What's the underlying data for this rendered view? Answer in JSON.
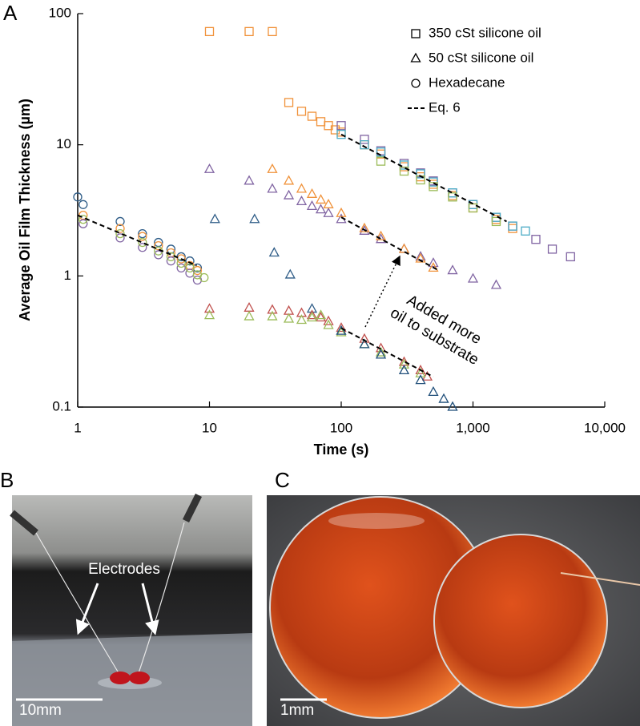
{
  "chart_data": {
    "type": "scatter",
    "panel_label": "A",
    "xlabel": "Time (s)",
    "ylabel": "Average Oil Film Thickness (µm)",
    "log_x": true,
    "log_y": true,
    "xlim": [
      1,
      10000
    ],
    "ylim": [
      0.1,
      100
    ],
    "xticks": [
      1,
      10,
      100,
      {
        "value": 1000,
        "label": "1,000"
      },
      {
        "value": 10000,
        "label": "10,000"
      }
    ],
    "yticks": [
      0.1,
      1,
      10,
      100
    ],
    "legend_position": "upper right",
    "legend": [
      {
        "name": "350 cSt silicone oil",
        "marker": "square"
      },
      {
        "name": "50 cSt silicone oil",
        "marker": "triangle"
      },
      {
        "name": "Hexadecane",
        "marker": "circle"
      },
      {
        "name": "Eq. 6",
        "marker": "dashed"
      }
    ],
    "series": [
      {
        "marker": "circle",
        "color": "#2e5c87",
        "x": [
          1,
          1.1,
          2.1,
          3.1,
          4.1,
          5.1,
          6.1,
          7.1,
          8.1
        ],
        "y": [
          4,
          3.5,
          2.6,
          2.1,
          1.8,
          1.6,
          1.4,
          1.3,
          1.15
        ]
      },
      {
        "marker": "circle",
        "color": "#f0923a",
        "x": [
          1.1,
          2.1,
          3.1,
          4.1,
          5.1,
          6.1,
          7.1,
          8.1
        ],
        "y": [
          2.9,
          2.3,
          2.0,
          1.7,
          1.5,
          1.35,
          1.2,
          1.1
        ]
      },
      {
        "marker": "circle",
        "color": "#8064a2",
        "x": [
          1.1,
          2.1,
          3.1,
          4.1,
          5.1,
          6.1,
          7.1,
          8.1
        ],
        "y": [
          2.5,
          1.95,
          1.65,
          1.45,
          1.3,
          1.15,
          1.05,
          0.93
        ]
      },
      {
        "marker": "circle",
        "color": "#9bbb59",
        "x": [
          1.1,
          2.1,
          3.1,
          4.1,
          5.1,
          6.1,
          7.1,
          8.1,
          9.1
        ],
        "y": [
          2.7,
          2.1,
          1.8,
          1.55,
          1.4,
          1.25,
          1.15,
          1.02,
          0.97
        ]
      },
      {
        "marker": "square",
        "color": "#f0923a",
        "x": [
          10,
          20,
          30,
          40,
          50,
          60,
          70,
          80,
          90,
          100,
          150,
          200,
          300,
          400,
          500,
          700,
          1000,
          1500,
          2000
        ],
        "y": [
          73,
          73,
          73,
          21,
          18,
          16.5,
          15,
          14,
          13,
          12.5,
          10,
          8.5,
          6.8,
          5.7,
          5,
          4.1,
          3.3,
          2.7,
          2.3
        ]
      },
      {
        "marker": "square",
        "color": "#8064a2",
        "x": [
          100,
          150,
          200,
          300,
          400,
          500,
          700,
          1000,
          1500,
          2000,
          3000,
          4000,
          5500
        ],
        "y": [
          14,
          11,
          9,
          7.2,
          6.1,
          5.3,
          4.3,
          3.5,
          2.8,
          2.4,
          1.9,
          1.6,
          1.4
        ]
      },
      {
        "marker": "square",
        "color": "#4bacc6",
        "x": [
          100,
          150,
          200,
          300,
          400,
          500,
          700,
          1000,
          1500,
          2000,
          2500
        ],
        "y": [
          12,
          10,
          8.8,
          7,
          6,
          5.2,
          4.3,
          3.5,
          2.8,
          2.4,
          2.2
        ]
      },
      {
        "marker": "square",
        "color": "#9bbb59",
        "x": [
          200,
          300,
          400,
          500,
          700,
          1000,
          1500
        ],
        "y": [
          7.5,
          6.3,
          5.4,
          4.8,
          4,
          3.3,
          2.6
        ]
      },
      {
        "marker": "triangle",
        "color": "#8064a2",
        "x": [
          10,
          20,
          30,
          40,
          50,
          60,
          70,
          80,
          100,
          150,
          200,
          300,
          400,
          500,
          700,
          1000,
          1500
        ],
        "y": [
          6.5,
          5.3,
          4.6,
          4.1,
          3.7,
          3.4,
          3.2,
          3.0,
          2.7,
          2.2,
          1.9,
          1.6,
          1.4,
          1.25,
          1.1,
          0.95,
          0.85
        ]
      },
      {
        "marker": "triangle",
        "color": "#f0923a",
        "x": [
          30,
          40,
          50,
          60,
          70,
          80,
          100,
          150,
          200,
          300,
          400,
          500
        ],
        "y": [
          6.5,
          5.3,
          4.6,
          4.2,
          3.8,
          3.5,
          3.0,
          2.3,
          2.0,
          1.6,
          1.35,
          1.15
        ]
      },
      {
        "marker": "triangle",
        "color": "#2e5c87",
        "x": [
          11,
          22,
          31,
          41,
          60
        ],
        "y": [
          2.7,
          2.7,
          1.5,
          1.02,
          0.56
        ]
      },
      {
        "marker": "triangle",
        "color": "#c0504d",
        "x": [
          10,
          20,
          30,
          40,
          50,
          60,
          70,
          80,
          100,
          150,
          200,
          300,
          400,
          450
        ],
        "y": [
          0.56,
          0.57,
          0.55,
          0.54,
          0.52,
          0.5,
          0.48,
          0.45,
          0.4,
          0.33,
          0.28,
          0.22,
          0.19,
          0.17
        ]
      },
      {
        "marker": "triangle",
        "color": "#9bbb59",
        "x": [
          10,
          20,
          30,
          40,
          50,
          60,
          70,
          80,
          100,
          150,
          200,
          300,
          400
        ],
        "y": [
          0.5,
          0.49,
          0.49,
          0.47,
          0.46,
          0.48,
          0.5,
          0.42,
          0.37,
          0.3,
          0.26,
          0.21,
          0.18
        ]
      },
      {
        "marker": "triangle",
        "color": "#1f4e79",
        "x": [
          100,
          150,
          200,
          300,
          400,
          500,
          600,
          700
        ],
        "y": [
          0.38,
          0.3,
          0.25,
          0.19,
          0.16,
          0.13,
          0.115,
          0.1
        ]
      }
    ],
    "fit_lines": [
      {
        "x": [
          1,
          8
        ],
        "y": [
          2.9,
          1.2
        ]
      },
      {
        "x": [
          100,
          1800
        ],
        "y": [
          12,
          2.6
        ]
      },
      {
        "x": [
          100,
          550
        ],
        "y": [
          2.8,
          1.1
        ]
      },
      {
        "x": [
          100,
          500
        ],
        "y": [
          0.4,
          0.17
        ]
      }
    ],
    "annotation": [
      "Added more",
      "oil to substrate"
    ]
  },
  "photos": {
    "b": {
      "label": "B",
      "annotation": "Electrodes",
      "scale_bar": "10mm"
    },
    "c": {
      "label": "C",
      "scale_bar": "1mm"
    }
  }
}
